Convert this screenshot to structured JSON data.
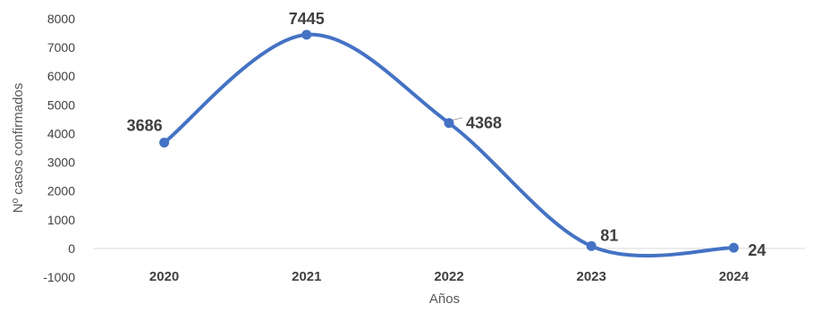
{
  "chart_data": {
    "type": "line",
    "smooth": true,
    "categories": [
      "2020",
      "2021",
      "2022",
      "2023",
      "2024"
    ],
    "series": [
      {
        "values": [
          3686,
          7445,
          4368,
          81,
          24
        ],
        "color": "#4472C4"
      }
    ],
    "data_labels": [
      "3686",
      "7445",
      "4368",
      "81",
      "24"
    ],
    "xlabel": "Años",
    "ylabel": "Nº casos confirmados",
    "ylim": [
      -1000,
      8000
    ],
    "yticks": [
      8000,
      7000,
      6000,
      5000,
      4000,
      3000,
      2000,
      1000,
      0,
      -1000
    ],
    "grid": false,
    "legend": "none"
  }
}
